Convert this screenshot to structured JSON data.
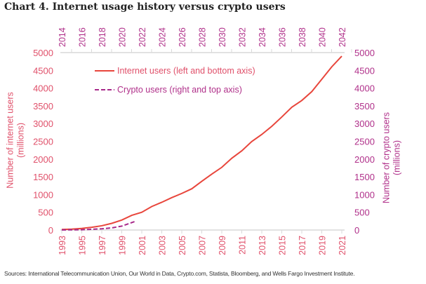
{
  "title": "Chart 4. Internet usage history versus crypto users",
  "source": "Sources: International Telecommunication Union, Our World in Data, Crypto.com, Statista, Bloomberg, and Wells Fargo Investment Institute.",
  "colors": {
    "internet": "#e8463c",
    "crypto": "#a8288a",
    "left_axis": "#e0506a",
    "right_axis": "#b0308a",
    "axis_line": "#d9d9d9"
  },
  "chart_data": {
    "type": "line",
    "title": "Chart 4. Internet usage history versus crypto users",
    "ylabel_left": "Number of internet users (millions)",
    "ylabel_right": "Number of crypto users (millions)",
    "ylim": [
      0,
      5000
    ],
    "yticks": [
      "0",
      "500",
      "1000",
      "1500",
      "2000",
      "2500",
      "3000",
      "3500",
      "4000",
      "4500",
      "5000"
    ],
    "bottom_xlim": [
      1993,
      2021
    ],
    "bottom_ticks": [
      "1993",
      "1995",
      "1997",
      "1999",
      "2001",
      "2003",
      "2005",
      "2007",
      "2009",
      "2011",
      "2013",
      "2015",
      "2017",
      "2019",
      "2021"
    ],
    "top_xlim": [
      2014,
      2042
    ],
    "top_ticks": [
      "2014",
      "2016",
      "2018",
      "2020",
      "2022",
      "2024",
      "2026",
      "2028",
      "2030",
      "2032",
      "2034",
      "2036",
      "2038",
      "2040",
      "2042"
    ],
    "legend_position": "top-left",
    "series": [
      {
        "name": "Internet users (left and bottom axis)",
        "style": "solid",
        "x": [
          1993,
          1994,
          1995,
          1996,
          1997,
          1998,
          1999,
          2000,
          2001,
          2002,
          2003,
          2004,
          2005,
          2006,
          2007,
          2008,
          2009,
          2010,
          2011,
          2012,
          2013,
          2014,
          2015,
          2016,
          2017,
          2018,
          2019,
          2020,
          2021
        ],
        "values": [
          14,
          25,
          45,
          77,
          120,
          188,
          281,
          413,
          500,
          662,
          781,
          913,
          1030,
          1162,
          1373,
          1575,
          1766,
          2023,
          2231,
          2494,
          2693,
          2923,
          3185,
          3461,
          3650,
          3900,
          4250,
          4600,
          4900
        ]
      },
      {
        "name": "Crypto users (right and top axis)",
        "style": "dashed",
        "x": [
          2014,
          2015,
          2016,
          2017,
          2018,
          2019,
          2020,
          2021.3
        ],
        "values": [
          2,
          5,
          8,
          20,
          35,
          60,
          110,
          240
        ]
      }
    ]
  }
}
